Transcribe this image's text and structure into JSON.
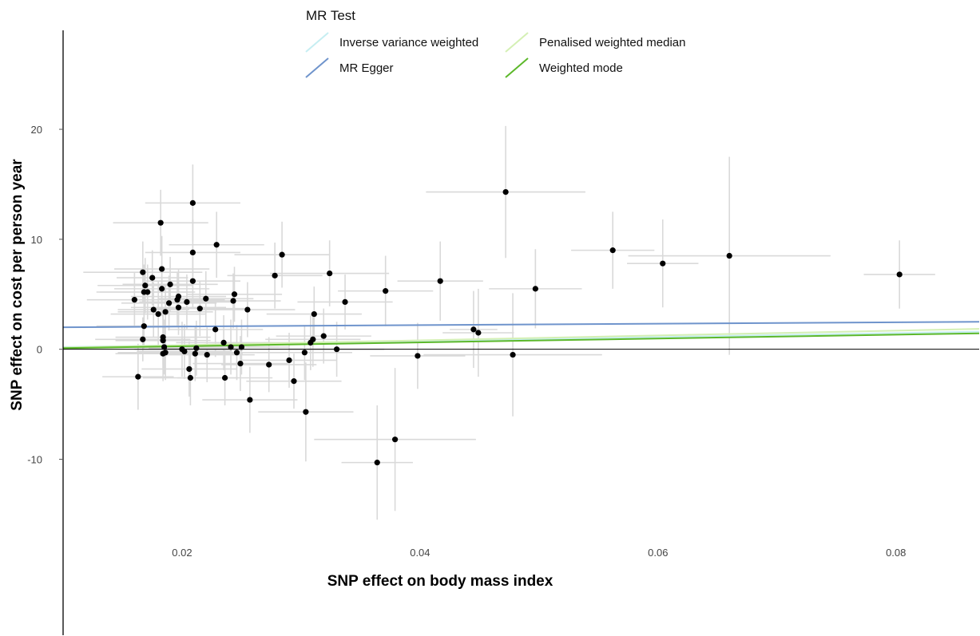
{
  "chart_data": {
    "type": "scatter",
    "xlabel": "SNP effect on body mass index",
    "ylabel": "SNP effect on cost per person year",
    "xlim": [
      0.01,
      0.087
    ],
    "ylim": [
      -26,
      29
    ],
    "xticks": [
      0.02,
      0.04,
      0.06,
      0.08
    ],
    "xtick_labels": [
      "0.02",
      "0.04",
      "0.06",
      "0.08"
    ],
    "yticks": [
      -10,
      0,
      10,
      20
    ],
    "ytick_labels": [
      "-10",
      "0",
      "10",
      "20"
    ],
    "grid": false,
    "legend": {
      "title": "MR Test",
      "placement": "top",
      "entries": [
        {
          "label": "Inverse variance weighted",
          "color": "#c6eef2"
        },
        {
          "label": "Penalised weighted median",
          "color": "#d4f0b4"
        },
        {
          "label": "MR Egger",
          "color": "#6f94cc"
        },
        {
          "label": "Weighted mode",
          "color": "#5cb82a"
        }
      ]
    },
    "lines": [
      {
        "name": "Inverse variance weighted",
        "color": "#c6eef2",
        "x": [
          0.01,
          0.087
        ],
        "y": [
          0.2,
          1.6
        ]
      },
      {
        "name": "Penalised weighted median",
        "color": "#d4f0b4",
        "x": [
          0.01,
          0.087
        ],
        "y": [
          0.15,
          1.85
        ]
      },
      {
        "name": "MR Egger",
        "color": "#6f94cc",
        "x": [
          0.01,
          0.087
        ],
        "y": [
          2.0,
          2.5
        ]
      },
      {
        "name": "Weighted mode",
        "color": "#5cb82a",
        "x": [
          0.01,
          0.087
        ],
        "y": [
          0.1,
          1.45
        ]
      }
    ],
    "points": [
      {
        "x": 0.016,
        "y": 4.5,
        "xerr": 0.004,
        "yerr": 2.5
      },
      {
        "x": 0.0163,
        "y": -2.5,
        "xerr": 0.003,
        "yerr": 3.0
      },
      {
        "x": 0.0167,
        "y": 7.0,
        "xerr": 0.005,
        "yerr": 2.8
      },
      {
        "x": 0.0168,
        "y": 5.2,
        "xerr": 0.004,
        "yerr": 2.5
      },
      {
        "x": 0.0168,
        "y": 2.1,
        "xerr": 0.004,
        "yerr": 2.0
      },
      {
        "x": 0.0167,
        "y": 0.9,
        "xerr": 0.004,
        "yerr": 2.0
      },
      {
        "x": 0.0169,
        "y": 5.8,
        "xerr": 0.004,
        "yerr": 2.5
      },
      {
        "x": 0.0171,
        "y": 5.2,
        "xerr": 0.004,
        "yerr": 2.5
      },
      {
        "x": 0.0175,
        "y": 6.5,
        "xerr": 0.003,
        "yerr": 2.5
      },
      {
        "x": 0.0176,
        "y": 3.6,
        "xerr": 0.003,
        "yerr": 2.5
      },
      {
        "x": 0.018,
        "y": 3.2,
        "xerr": 0.004,
        "yerr": 3.0
      },
      {
        "x": 0.0182,
        "y": 11.5,
        "xerr": 0.004,
        "yerr": 3.0
      },
      {
        "x": 0.0183,
        "y": 7.3,
        "xerr": 0.004,
        "yerr": 3.0
      },
      {
        "x": 0.0183,
        "y": 5.5,
        "xerr": 0.004,
        "yerr": 2.5
      },
      {
        "x": 0.0184,
        "y": 1.1,
        "xerr": 0.004,
        "yerr": 2.5
      },
      {
        "x": 0.0184,
        "y": 0.8,
        "xerr": 0.004,
        "yerr": 2.5
      },
      {
        "x": 0.0185,
        "y": 0.2,
        "xerr": 0.004,
        "yerr": 2.5
      },
      {
        "x": 0.0184,
        "y": -0.4,
        "xerr": 0.004,
        "yerr": 2.5
      },
      {
        "x": 0.0186,
        "y": -0.3,
        "xerr": 0.004,
        "yerr": 2.5
      },
      {
        "x": 0.0186,
        "y": 3.4,
        "xerr": 0.004,
        "yerr": 2.5
      },
      {
        "x": 0.0189,
        "y": 4.2,
        "xerr": 0.004,
        "yerr": 2.5
      },
      {
        "x": 0.019,
        "y": 5.9,
        "xerr": 0.004,
        "yerr": 2.5
      },
      {
        "x": 0.0196,
        "y": 4.5,
        "xerr": 0.004,
        "yerr": 2.5
      },
      {
        "x": 0.0197,
        "y": 3.8,
        "xerr": 0.004,
        "yerr": 2.5
      },
      {
        "x": 0.0197,
        "y": 4.8,
        "xerr": 0.004,
        "yerr": 2.5
      },
      {
        "x": 0.02,
        "y": 0.0,
        "xerr": 0.004,
        "yerr": 2.5
      },
      {
        "x": 0.0202,
        "y": -0.2,
        "xerr": 0.004,
        "yerr": 2.5
      },
      {
        "x": 0.0204,
        "y": 4.3,
        "xerr": 0.004,
        "yerr": 2.5
      },
      {
        "x": 0.0206,
        "y": -1.8,
        "xerr": 0.004,
        "yerr": 2.5
      },
      {
        "x": 0.0207,
        "y": -2.6,
        "xerr": 0.004,
        "yerr": 2.5
      },
      {
        "x": 0.0209,
        "y": 13.3,
        "xerr": 0.004,
        "yerr": 3.5
      },
      {
        "x": 0.0209,
        "y": 8.8,
        "xerr": 0.004,
        "yerr": 3.0
      },
      {
        "x": 0.0209,
        "y": 6.2,
        "xerr": 0.004,
        "yerr": 2.5
      },
      {
        "x": 0.0211,
        "y": -0.4,
        "xerr": 0.004,
        "yerr": 2.5
      },
      {
        "x": 0.0212,
        "y": 0.1,
        "xerr": 0.004,
        "yerr": 2.5
      },
      {
        "x": 0.0215,
        "y": 3.7,
        "xerr": 0.004,
        "yerr": 2.5
      },
      {
        "x": 0.022,
        "y": 4.6,
        "xerr": 0.004,
        "yerr": 2.5
      },
      {
        "x": 0.0221,
        "y": -0.5,
        "xerr": 0.004,
        "yerr": 2.5
      },
      {
        "x": 0.0228,
        "y": 1.8,
        "xerr": 0.004,
        "yerr": 2.5
      },
      {
        "x": 0.0229,
        "y": 9.5,
        "xerr": 0.004,
        "yerr": 3.0
      },
      {
        "x": 0.0235,
        "y": 0.6,
        "xerr": 0.004,
        "yerr": 2.5
      },
      {
        "x": 0.0236,
        "y": -2.6,
        "xerr": 0.004,
        "yerr": 2.5
      },
      {
        "x": 0.0241,
        "y": 0.2,
        "xerr": 0.004,
        "yerr": 2.5
      },
      {
        "x": 0.0243,
        "y": 4.4,
        "xerr": 0.004,
        "yerr": 2.5
      },
      {
        "x": 0.0244,
        "y": 5.0,
        "xerr": 0.004,
        "yerr": 2.5
      },
      {
        "x": 0.0246,
        "y": -0.3,
        "xerr": 0.004,
        "yerr": 2.5
      },
      {
        "x": 0.0249,
        "y": -1.3,
        "xerr": 0.004,
        "yerr": 2.5
      },
      {
        "x": 0.025,
        "y": 0.2,
        "xerr": 0.004,
        "yerr": 2.5
      },
      {
        "x": 0.0255,
        "y": 3.6,
        "xerr": 0.004,
        "yerr": 2.5
      },
      {
        "x": 0.0257,
        "y": -4.6,
        "xerr": 0.004,
        "yerr": 3.0
      },
      {
        "x": 0.0273,
        "y": -1.4,
        "xerr": 0.004,
        "yerr": 2.5
      },
      {
        "x": 0.0278,
        "y": 6.7,
        "xerr": 0.004,
        "yerr": 3.0
      },
      {
        "x": 0.0284,
        "y": 8.6,
        "xerr": 0.004,
        "yerr": 3.0
      },
      {
        "x": 0.029,
        "y": -1.0,
        "xerr": 0.004,
        "yerr": 2.5
      },
      {
        "x": 0.0294,
        "y": -2.9,
        "xerr": 0.004,
        "yerr": 2.5
      },
      {
        "x": 0.0303,
        "y": -0.3,
        "xerr": 0.004,
        "yerr": 2.5
      },
      {
        "x": 0.0304,
        "y": -5.7,
        "xerr": 0.004,
        "yerr": 4.5
      },
      {
        "x": 0.0308,
        "y": 0.6,
        "xerr": 0.004,
        "yerr": 2.5
      },
      {
        "x": 0.031,
        "y": 0.9,
        "xerr": 0.004,
        "yerr": 2.5
      },
      {
        "x": 0.0311,
        "y": 3.2,
        "xerr": 0.004,
        "yerr": 2.5
      },
      {
        "x": 0.0319,
        "y": 1.2,
        "xerr": 0.004,
        "yerr": 2.5
      },
      {
        "x": 0.0324,
        "y": 6.9,
        "xerr": 0.005,
        "yerr": 3.0
      },
      {
        "x": 0.033,
        "y": 0.0,
        "xerr": 0.004,
        "yerr": 2.5
      },
      {
        "x": 0.0337,
        "y": 4.3,
        "xerr": 0.004,
        "yerr": 2.5
      },
      {
        "x": 0.0364,
        "y": -10.3,
        "xerr": 0.003,
        "yerr": 5.2
      },
      {
        "x": 0.0371,
        "y": 5.3,
        "xerr": 0.004,
        "yerr": 3.2
      },
      {
        "x": 0.0379,
        "y": -8.2,
        "xerr": 0.0068,
        "yerr": 6.5
      },
      {
        "x": 0.0398,
        "y": -0.6,
        "xerr": 0.004,
        "yerr": 3.0
      },
      {
        "x": 0.0417,
        "y": 6.2,
        "xerr": 0.0036,
        "yerr": 3.6
      },
      {
        "x": 0.0445,
        "y": 1.8,
        "xerr": 0.002,
        "yerr": 3.5
      },
      {
        "x": 0.0449,
        "y": 1.5,
        "xerr": 0.003,
        "yerr": 4.0
      },
      {
        "x": 0.0472,
        "y": 14.3,
        "xerr": 0.0067,
        "yerr": 6.0
      },
      {
        "x": 0.0478,
        "y": -0.5,
        "xerr": 0.0075,
        "yerr": 5.6
      },
      {
        "x": 0.0497,
        "y": 5.5,
        "xerr": 0.0039,
        "yerr": 3.6
      },
      {
        "x": 0.0562,
        "y": 9.0,
        "xerr": 0.0035,
        "yerr": 3.5
      },
      {
        "x": 0.0604,
        "y": 7.8,
        "xerr": 0.003,
        "yerr": 4.0
      },
      {
        "x": 0.066,
        "y": 8.5,
        "xerr": 0.0085,
        "yerr": 9.0
      },
      {
        "x": 0.0803,
        "y": 6.8,
        "xerr": 0.003,
        "yerr": 3.1
      }
    ]
  }
}
